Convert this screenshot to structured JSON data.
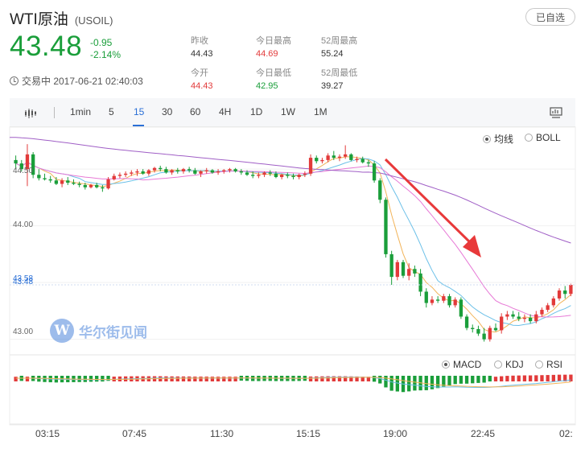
{
  "header": {
    "title": "WTI原油",
    "code": "(USOIL)",
    "watch_button": "已自选",
    "price": "43.48",
    "change": "-0.95",
    "change_pct": "-2.14%",
    "status_time": "交易中 2017-06-21 02:40:03",
    "stats": {
      "prev_close": {
        "label": "昨收",
        "value": "44.43"
      },
      "open": {
        "label": "今开",
        "value": "44.43"
      },
      "high": {
        "label": "今日最高",
        "value": "44.69"
      },
      "low": {
        "label": "今日最低",
        "value": "42.95"
      },
      "high52": {
        "label": "52周最高",
        "value": "55.24"
      },
      "low52": {
        "label": "52周最低",
        "value": "39.27"
      }
    }
  },
  "toolbar": {
    "intervals": [
      "1min",
      "5",
      "15",
      "30",
      "60",
      "4H",
      "1D",
      "1W",
      "1M"
    ],
    "active": "15"
  },
  "indicators_top": {
    "ma": "均线",
    "boll": "BOLL",
    "selected": "均线"
  },
  "indicators_bottom": {
    "macd": "MACD",
    "kdj": "KDJ",
    "rsi": "RSI",
    "selected": "MACD"
  },
  "watermark": "华尔街见闻",
  "colors": {
    "up": "#e23a3a",
    "down": "#1a9e3a",
    "accent": "#2a6fd6",
    "annotation_arrow": "#e8393a"
  },
  "chart_data": {
    "type": "candlestick",
    "y_ticks": [
      "44.50",
      "44.00",
      "43.58",
      "43.48",
      "43.00"
    ],
    "current_price_marker": "43.48",
    "x_ticks": [
      "03:15",
      "07:45",
      "11:30",
      "15:15",
      "19:00",
      "22:45",
      "02:"
    ],
    "ylim": [
      42.87,
      44.87
    ],
    "candles": [
      [
        44.58,
        44.62,
        44.5,
        44.55
      ],
      [
        44.55,
        44.58,
        44.48,
        44.5
      ],
      [
        44.5,
        44.72,
        44.35,
        44.63
      ],
      [
        44.63,
        44.65,
        44.42,
        44.45
      ],
      [
        44.45,
        44.5,
        44.4,
        44.42
      ],
      [
        44.42,
        44.46,
        44.4,
        44.41
      ],
      [
        44.41,
        44.44,
        44.38,
        44.4
      ],
      [
        44.4,
        44.43,
        44.36,
        44.37
      ],
      [
        44.37,
        44.42,
        44.34,
        44.4
      ],
      [
        44.4,
        44.43,
        44.36,
        44.38
      ],
      [
        44.38,
        44.41,
        44.36,
        44.37
      ],
      [
        44.37,
        44.39,
        44.34,
        44.36
      ],
      [
        44.36,
        44.38,
        44.32,
        44.34
      ],
      [
        44.34,
        44.37,
        44.33,
        44.36
      ],
      [
        44.36,
        44.38,
        44.33,
        44.34
      ],
      [
        44.34,
        44.36,
        44.3,
        44.33
      ],
      [
        44.33,
        44.43,
        44.32,
        44.41
      ],
      [
        44.41,
        44.46,
        44.4,
        44.44
      ],
      [
        44.44,
        44.47,
        44.42,
        44.45
      ],
      [
        44.45,
        44.48,
        44.43,
        44.46
      ],
      [
        44.46,
        44.49,
        44.44,
        44.47
      ],
      [
        44.47,
        44.5,
        44.44,
        44.48
      ],
      [
        44.48,
        44.5,
        44.45,
        44.46
      ],
      [
        44.46,
        44.5,
        44.44,
        44.49
      ],
      [
        44.49,
        44.52,
        44.47,
        44.51
      ],
      [
        44.51,
        44.53,
        44.48,
        44.5
      ],
      [
        44.5,
        44.52,
        44.46,
        44.47
      ],
      [
        44.47,
        44.5,
        44.45,
        44.49
      ],
      [
        44.49,
        44.51,
        44.46,
        44.48
      ],
      [
        44.48,
        44.51,
        44.46,
        44.5
      ],
      [
        44.5,
        44.52,
        44.47,
        44.49
      ],
      [
        44.49,
        44.51,
        44.45,
        44.46
      ],
      [
        44.46,
        44.49,
        44.43,
        44.48
      ],
      [
        44.48,
        44.51,
        44.46,
        44.49
      ],
      [
        44.49,
        44.5,
        44.46,
        44.47
      ],
      [
        44.47,
        44.5,
        44.45,
        44.48
      ],
      [
        44.48,
        44.5,
        44.46,
        44.49
      ],
      [
        44.49,
        44.51,
        44.47,
        44.5
      ],
      [
        44.5,
        44.51,
        44.47,
        44.48
      ],
      [
        44.48,
        44.5,
        44.45,
        44.47
      ],
      [
        44.47,
        44.49,
        44.44,
        44.45
      ],
      [
        44.45,
        44.48,
        44.42,
        44.44
      ],
      [
        44.44,
        44.47,
        44.42,
        44.45
      ],
      [
        44.45,
        44.48,
        44.43,
        44.47
      ],
      [
        44.47,
        44.49,
        44.44,
        44.46
      ],
      [
        44.46,
        44.48,
        44.42,
        44.43
      ],
      [
        44.43,
        44.46,
        44.41,
        44.45
      ],
      [
        44.45,
        44.47,
        44.42,
        44.44
      ],
      [
        44.44,
        44.46,
        44.41,
        44.43
      ],
      [
        44.43,
        44.46,
        44.41,
        44.45
      ],
      [
        44.45,
        44.48,
        44.43,
        44.46
      ],
      [
        44.46,
        44.63,
        44.44,
        44.6
      ],
      [
        44.6,
        44.62,
        44.55,
        44.57
      ],
      [
        44.57,
        44.6,
        44.55,
        44.58
      ],
      [
        44.58,
        44.64,
        44.56,
        44.62
      ],
      [
        44.62,
        44.66,
        44.58,
        44.6
      ],
      [
        44.6,
        44.63,
        44.57,
        44.61
      ],
      [
        44.61,
        44.71,
        44.59,
        44.63
      ],
      [
        44.63,
        44.64,
        44.57,
        44.58
      ],
      [
        44.58,
        44.61,
        44.56,
        44.59
      ],
      [
        44.59,
        44.61,
        44.55,
        44.56
      ],
      [
        44.56,
        44.58,
        44.52,
        44.55
      ],
      [
        44.55,
        44.57,
        44.38,
        44.4
      ],
      [
        44.4,
        44.42,
        44.2,
        44.23
      ],
      [
        44.23,
        44.25,
        43.72,
        43.75
      ],
      [
        43.75,
        43.78,
        43.48,
        43.55
      ],
      [
        43.55,
        43.7,
        43.52,
        43.68
      ],
      [
        43.68,
        43.7,
        43.54,
        43.56
      ],
      [
        43.56,
        43.67,
        43.52,
        43.62
      ],
      [
        43.62,
        43.65,
        43.55,
        43.58
      ],
      [
        43.58,
        43.62,
        43.38,
        43.42
      ],
      [
        43.42,
        43.45,
        43.28,
        43.32
      ],
      [
        43.32,
        43.38,
        43.3,
        43.35
      ],
      [
        43.35,
        43.38,
        43.32,
        43.34
      ],
      [
        43.34,
        43.4,
        43.32,
        43.38
      ],
      [
        43.38,
        43.4,
        43.28,
        43.3
      ],
      [
        43.3,
        43.37,
        43.28,
        43.35
      ],
      [
        43.35,
        43.37,
        43.18,
        43.2
      ],
      [
        43.2,
        43.22,
        43.08,
        43.1
      ],
      [
        43.1,
        43.13,
        43.06,
        43.09
      ],
      [
        43.09,
        43.12,
        43.03,
        43.05
      ],
      [
        43.05,
        43.1,
        42.98,
        43.0
      ],
      [
        43.0,
        43.12,
        42.98,
        43.1
      ],
      [
        43.1,
        43.14,
        43.07,
        43.08
      ],
      [
        43.08,
        43.23,
        43.05,
        43.2
      ],
      [
        43.2,
        43.25,
        43.17,
        43.22
      ],
      [
        43.22,
        43.25,
        43.18,
        43.2
      ],
      [
        43.2,
        43.24,
        43.16,
        43.18
      ],
      [
        43.18,
        43.22,
        43.15,
        43.19
      ],
      [
        43.19,
        43.22,
        43.14,
        43.16
      ],
      [
        43.16,
        43.25,
        43.14,
        43.22
      ],
      [
        43.22,
        43.28,
        43.2,
        43.26
      ],
      [
        43.26,
        43.32,
        43.24,
        43.3
      ],
      [
        43.3,
        43.38,
        43.28,
        43.36
      ],
      [
        43.36,
        43.45,
        43.34,
        43.43
      ],
      [
        43.43,
        43.47,
        43.36,
        43.4
      ],
      [
        43.4,
        43.49,
        43.38,
        43.48
      ]
    ],
    "ma_series": [
      "orange-fast",
      "light-blue",
      "pink",
      "purple-slow"
    ],
    "macd_series": [
      "macd-line",
      "signal-line",
      "histogram"
    ]
  }
}
